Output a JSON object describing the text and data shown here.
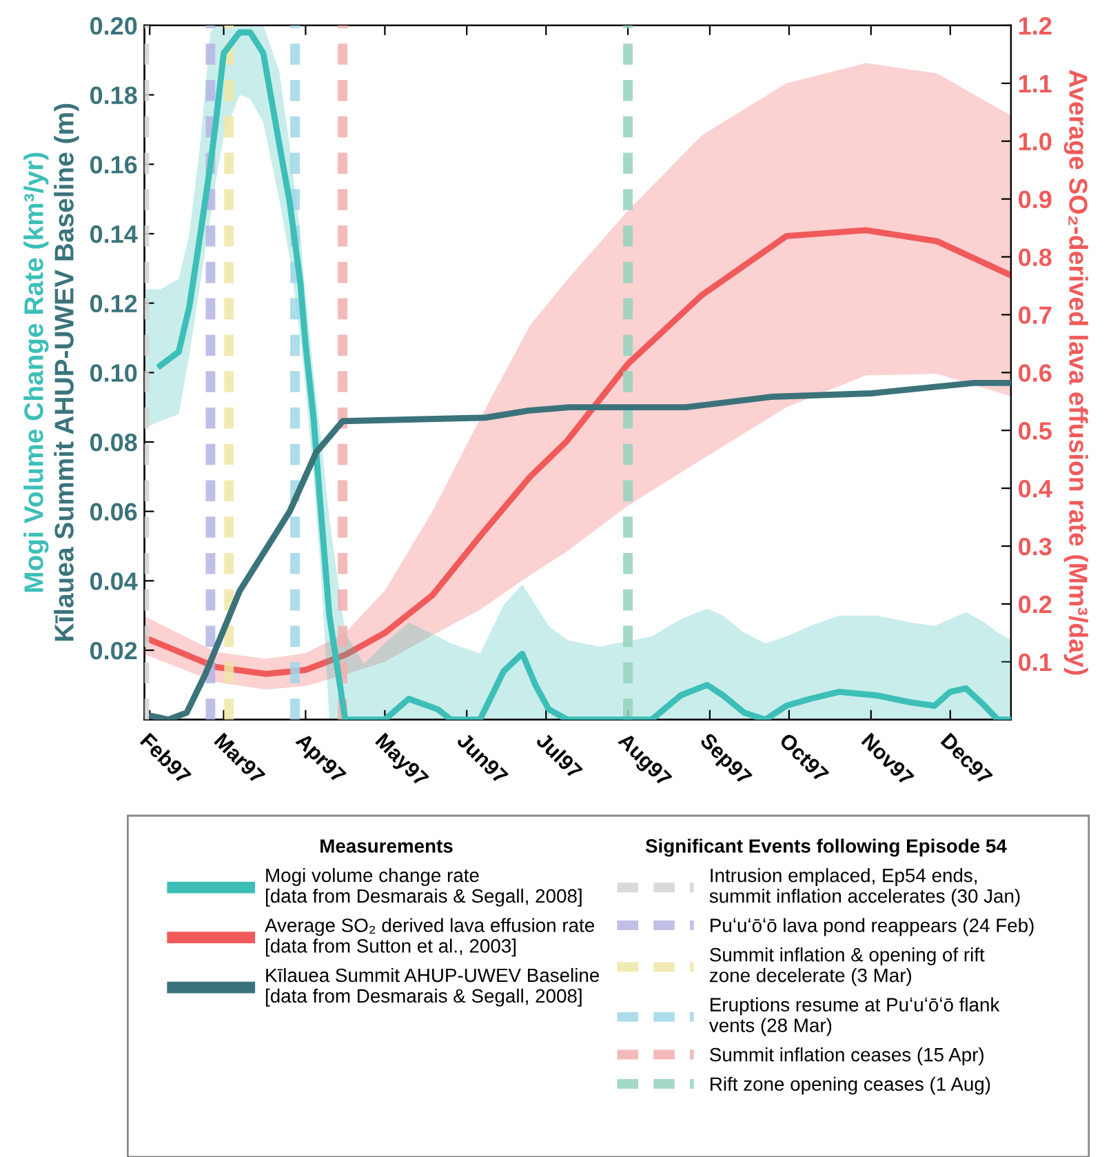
{
  "chart_data": {
    "type": "line",
    "ylabel": "Mogi Volume Change Rate (km³/yr)\nKīlauea Summit AHUP-UWEV Baseline (m)",
    "y2label": "Average SO₂-derived lava effusion rate (Mm³/day)",
    "legend_title": "Measurements",
    "annotations": [
      "Significant Events following Episode 54"
    ],
    "legend": "bottom",
    "grid": false,
    "line_style": "solid",
    "marker": "none",
    "xlim": [
      "1997-01-30",
      "1997-12-24"
    ],
    "xticks": [
      {
        "value": "1997-02-01",
        "label": "Feb97"
      },
      {
        "value": "1997-03-01",
        "label": "Mar97"
      },
      {
        "value": "1997-04-01",
        "label": "Apr97"
      },
      {
        "value": "1997-05-01",
        "label": "May97"
      },
      {
        "value": "1997-06-01",
        "label": "Jun97"
      },
      {
        "value": "1997-07-01",
        "label": "Jul97"
      },
      {
        "value": "1997-08-01",
        "label": "Aug97"
      },
      {
        "value": "1997-09-01",
        "label": "Sep97"
      },
      {
        "value": "1997-10-01",
        "label": "Oct97"
      },
      {
        "value": "1997-11-01",
        "label": "Nov97"
      },
      {
        "value": "1997-12-01",
        "label": "Dec97"
      }
    ],
    "ylim": [
      0,
      0.2
    ],
    "yticks": [
      0.02,
      0.04,
      0.06,
      0.08,
      {
        "value": 0.1,
        "label": "0.10"
      },
      0.12,
      0.14,
      0.16,
      0.18,
      {
        "value": 0.2,
        "label": "0.20"
      }
    ],
    "y2lim": [
      0,
      1.2
    ],
    "y2ticks": [
      0.1,
      0.2,
      0.3,
      0.4,
      0.5,
      0.6,
      0.7,
      0.8,
      0.9,
      {
        "value": 1.0,
        "label": "1.0"
      },
      1.1,
      1.2
    ],
    "series": [
      {
        "name": "Mogi volume change rate\n[data from Desmarais & Segall, 2008]",
        "color": "#3dbfb8",
        "x": [
          "1997-01-30",
          "1997-02-05",
          "1997-02-12",
          "1997-02-16",
          "1997-02-20",
          "1997-02-24",
          "1997-02-26",
          "1997-03-01",
          "1997-03-07",
          "1997-03-11",
          "1997-03-16",
          "1997-03-22",
          "1997-03-26",
          "1997-03-30",
          "1997-04-01",
          "1997-04-04",
          "1997-04-07",
          "1997-04-10",
          "1997-04-16",
          "1997-04-23",
          "1997-05-01",
          "1997-05-10",
          "1997-05-21",
          "1997-05-26",
          "1997-06-06",
          "1997-06-15",
          "1997-06-22",
          "1997-06-27",
          "1997-07-02",
          "1997-07-09",
          "1997-07-21",
          "1997-08-10",
          "1997-08-21",
          "1997-08-31",
          "1997-09-06",
          "1997-09-14",
          "1997-09-22",
          "1997-09-30",
          "1997-10-09",
          "1997-10-20",
          "1997-11-03",
          "1997-11-16",
          "1997-11-25",
          "1997-12-01",
          "1997-12-07",
          "1997-12-14",
          "1997-12-19",
          "1997-12-24"
        ],
        "values": [
          null,
          0.102,
          0.106,
          0.119,
          0.139,
          0.16,
          0.172,
          0.192,
          0.198,
          0.198,
          0.192,
          0.166,
          0.149,
          0.126,
          0.108,
          0.087,
          0.058,
          0.03,
          0,
          0,
          0,
          0.006,
          0.003,
          0,
          0,
          0.014,
          0.019,
          0.01,
          0.003,
          0,
          0,
          0,
          0.007,
          0.01,
          0.007,
          0.002,
          0,
          0.004,
          0.006,
          0.008,
          0.007,
          0.005,
          0.004,
          0.008,
          0.009,
          0.004,
          0,
          0
        ],
        "lower": [
          0.084,
          0.086,
          0.088,
          0.105,
          0.125,
          0.145,
          0.155,
          0.168,
          0.18,
          0.179,
          0.172,
          0.15,
          0.133,
          0.11,
          0.095,
          0.07,
          0.04,
          0,
          0,
          0,
          0,
          0,
          0,
          0,
          0,
          0,
          0,
          0,
          0,
          0,
          0,
          0,
          0,
          0,
          0,
          0,
          0,
          0,
          0,
          0,
          0,
          0,
          0,
          0,
          0,
          0,
          0,
          0
        ],
        "upper": [
          0.124,
          0.124,
          0.127,
          0.14,
          0.165,
          0.198,
          0.2,
          0.2,
          0.2,
          0.2,
          0.2,
          0.187,
          0.165,
          0.14,
          0.122,
          0.1,
          0.08,
          0.058,
          0.025,
          0.016,
          0.022,
          0.028,
          0.024,
          0.022,
          0.019,
          0.033,
          0.039,
          0.033,
          0.027,
          0.023,
          0.021,
          0.024,
          0.029,
          0.032,
          0.03,
          0.025,
          0.022,
          0.024,
          0.027,
          0.03,
          0.03,
          0.028,
          0.027,
          0.029,
          0.031,
          0.028,
          0.025,
          0.023
        ]
      },
      {
        "name": "Average SO₂ derived lava effusion rate\n[data from Sutton et al., 2003]",
        "color": "#f05a5a",
        "axis": "y2",
        "x": [
          "1997-01-30",
          "1997-02-26",
          "1997-03-17",
          "1997-04-01",
          "1997-04-16",
          "1997-05-01",
          "1997-05-19",
          "1997-06-06",
          "1997-06-25",
          "1997-07-09",
          "1997-08-01",
          "1997-08-29",
          "1997-09-30",
          "1997-10-30",
          "1997-11-26",
          "1997-12-24"
        ],
        "values": [
          0.142,
          0.091,
          0.079,
          0.086,
          0.112,
          0.15,
          0.215,
          0.317,
          0.42,
          0.482,
          0.615,
          0.734,
          0.836,
          0.846,
          0.827,
          0.768
        ],
        "lower": [
          0.113,
          0.065,
          0.052,
          0.058,
          0.078,
          0.1,
          0.146,
          0.19,
          0.25,
          0.291,
          0.37,
          0.45,
          0.54,
          0.595,
          0.598,
          0.559
        ],
        "upper": [
          0.179,
          0.117,
          0.105,
          0.115,
          0.15,
          0.223,
          0.36,
          0.52,
          0.682,
          0.76,
          0.88,
          1.01,
          1.1,
          1.135,
          1.117,
          1.044
        ]
      },
      {
        "name": "Kīlauea Summit AHUP-UWEV Baseline\n[data from Desmarais & Segall, 2008]",
        "color": "#3b737b",
        "x": [
          "1997-02-02",
          "1997-02-08",
          "1997-02-15",
          "1997-02-22",
          "1997-03-07",
          "1997-03-26",
          "1997-04-05",
          "1997-04-15",
          "1997-06-08",
          "1997-06-24",
          "1997-07-10",
          "1997-08-23",
          "1997-09-24",
          "1997-11-01",
          "1997-12-10",
          "1997-12-24"
        ],
        "values": [
          0.001,
          0,
          0.002,
          0.013,
          0.037,
          0.06,
          0.077,
          0.086,
          0.087,
          0.089,
          0.09,
          0.09,
          0.093,
          0.094,
          0.097,
          0.097
        ]
      }
    ],
    "ref_lines": [
      {
        "axis": "x",
        "value": "1997-01-30",
        "label": "Intrusion emplaced, Ep54 ends,\nsummit inflation accelerates (30 Jan)",
        "color": "#d4d4d4",
        "line_style": "dashed"
      },
      {
        "axis": "x",
        "value": "1997-02-24",
        "label": "Puʻuʻōʻō lava pond reappears (24 Feb)",
        "color": "#b4b4e4",
        "line_style": "dashed"
      },
      {
        "axis": "x",
        "value": "1997-03-03",
        "label": "Summit inflation & opening of rift\nzone decelerate (3 Mar)",
        "color": "#f0e6a6",
        "line_style": "dashed"
      },
      {
        "axis": "x",
        "value": "1997-03-28",
        "label": "Eruptions resume at Puʻuʻōʻō flank\nvents (28 Mar)",
        "color": "#9fd6e8",
        "line_style": "dashed"
      },
      {
        "axis": "x",
        "value": "1997-04-15",
        "label": "Summit inflation ceases (15 Apr)",
        "color": "#f2aeae",
        "line_style": "dashed"
      },
      {
        "axis": "x",
        "value": "1997-08-01",
        "label": "Rift zone opening ceases (1 Aug)",
        "color": "#94d2bd",
        "line_style": "dashed"
      }
    ]
  }
}
